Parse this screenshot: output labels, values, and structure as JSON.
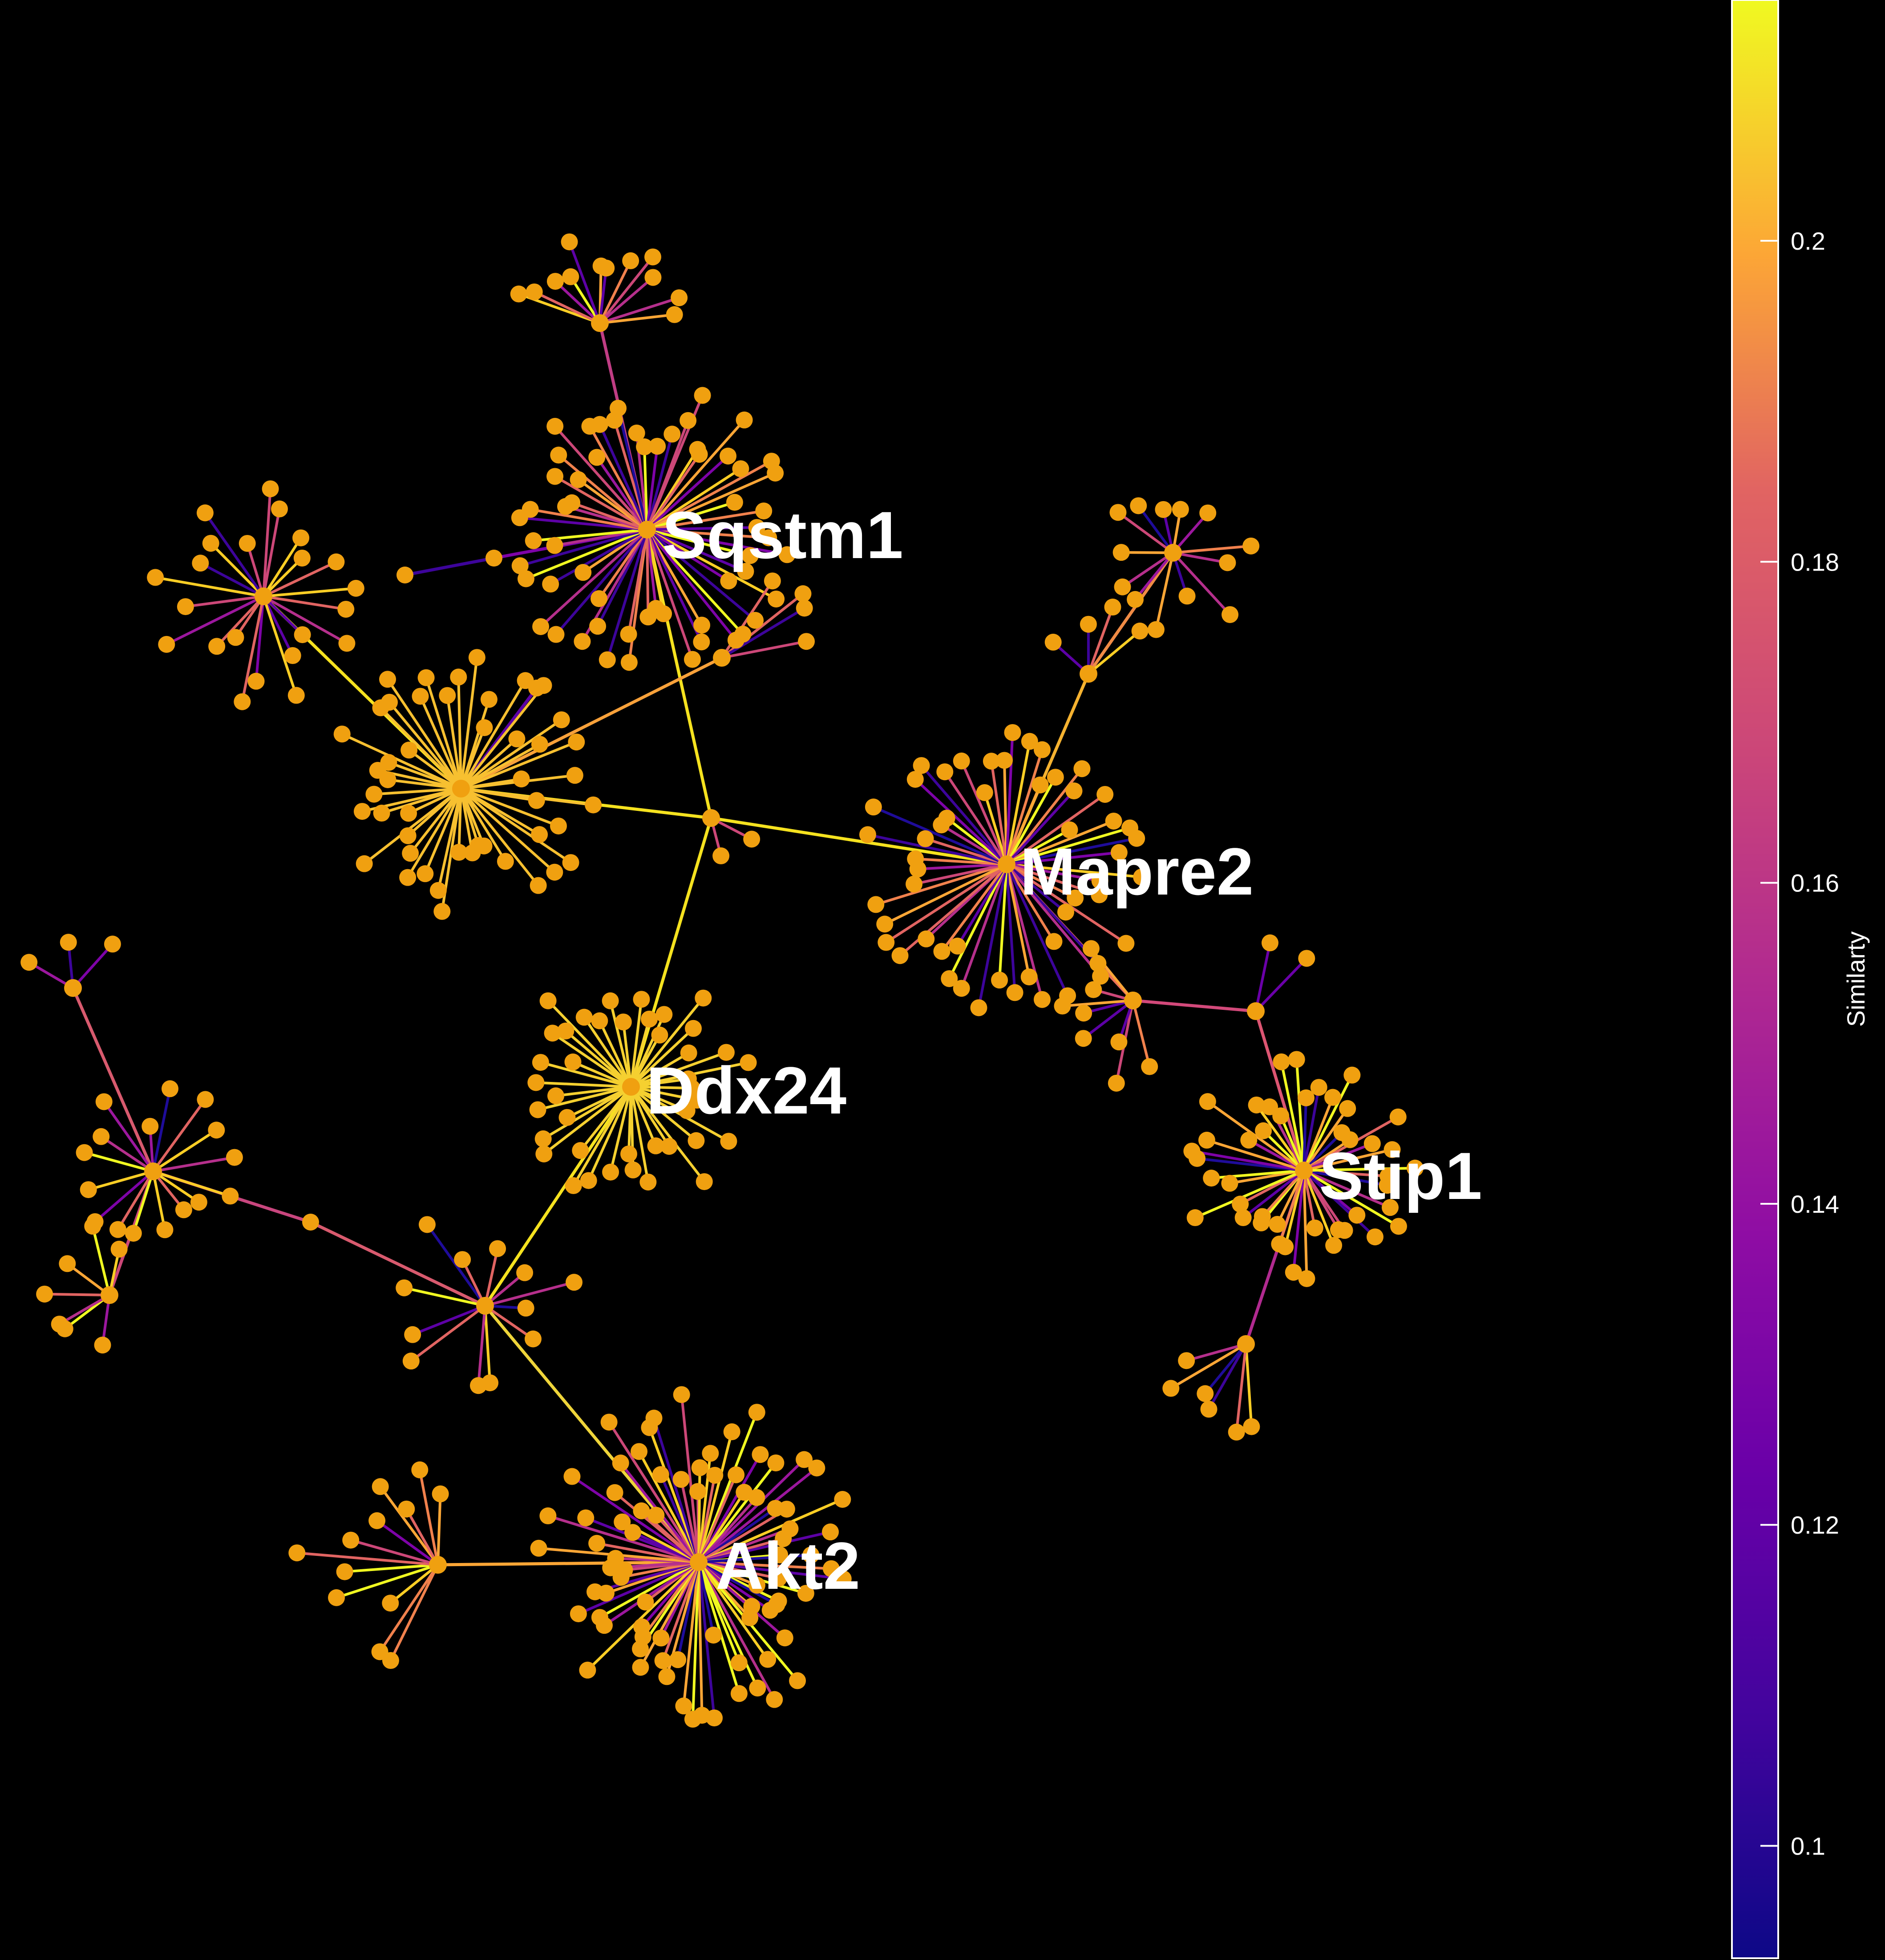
{
  "background_color": "#000000",
  "node_color": "#f0a010",
  "hub_labels": {
    "sqstm1": "Sqstm1",
    "mapre2": "Mapre2",
    "ddx24": "Ddx24",
    "stip1": "Stip1",
    "akt2": "Akt2"
  },
  "colorbar": {
    "title": "Similarty",
    "ticks": [
      "0.1",
      "0.12",
      "0.14",
      "0.16",
      "0.18",
      "0.2"
    ],
    "range": [
      0.093,
      0.215
    ],
    "colormap": "plasma"
  }
}
